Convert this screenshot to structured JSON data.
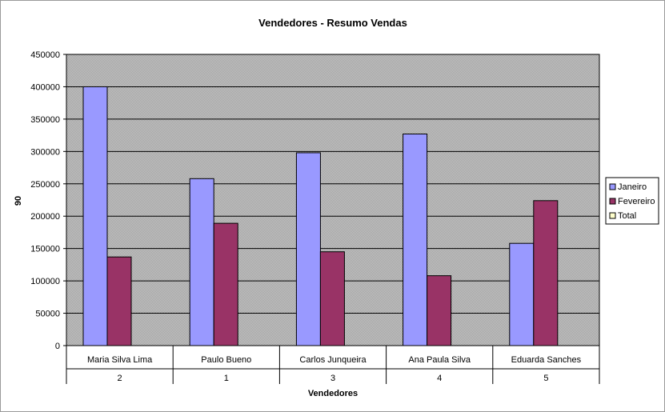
{
  "chart_data": {
    "type": "bar",
    "title": "Vendedores - Resumo Vendas",
    "xlabel": "Vendedores",
    "ylabel": "90",
    "ylim": [
      0,
      450000
    ],
    "yticks": [
      "0",
      "50000",
      "100000",
      "150000",
      "200000",
      "250000",
      "300000",
      "350000",
      "400000",
      "450000"
    ],
    "categories": [
      "Maria Silva Lima",
      "Paulo Bueno",
      "Carlos Junqueira",
      "Ana Paula Silva",
      "Eduarda Sanches"
    ],
    "subcategories": [
      "2",
      "1",
      "3",
      "4",
      "5"
    ],
    "series": [
      {
        "name": "Janeiro",
        "color": "#9999ff",
        "values": [
          400000,
          258000,
          298000,
          327000,
          158000
        ]
      },
      {
        "name": "Fevereiro",
        "color": "#993366",
        "values": [
          137000,
          189000,
          145000,
          108000,
          224000
        ]
      },
      {
        "name": "Total",
        "color": "#ffffcc",
        "values": [
          null,
          null,
          null,
          null,
          null
        ]
      }
    ],
    "grid": true,
    "legend_position": "right"
  }
}
